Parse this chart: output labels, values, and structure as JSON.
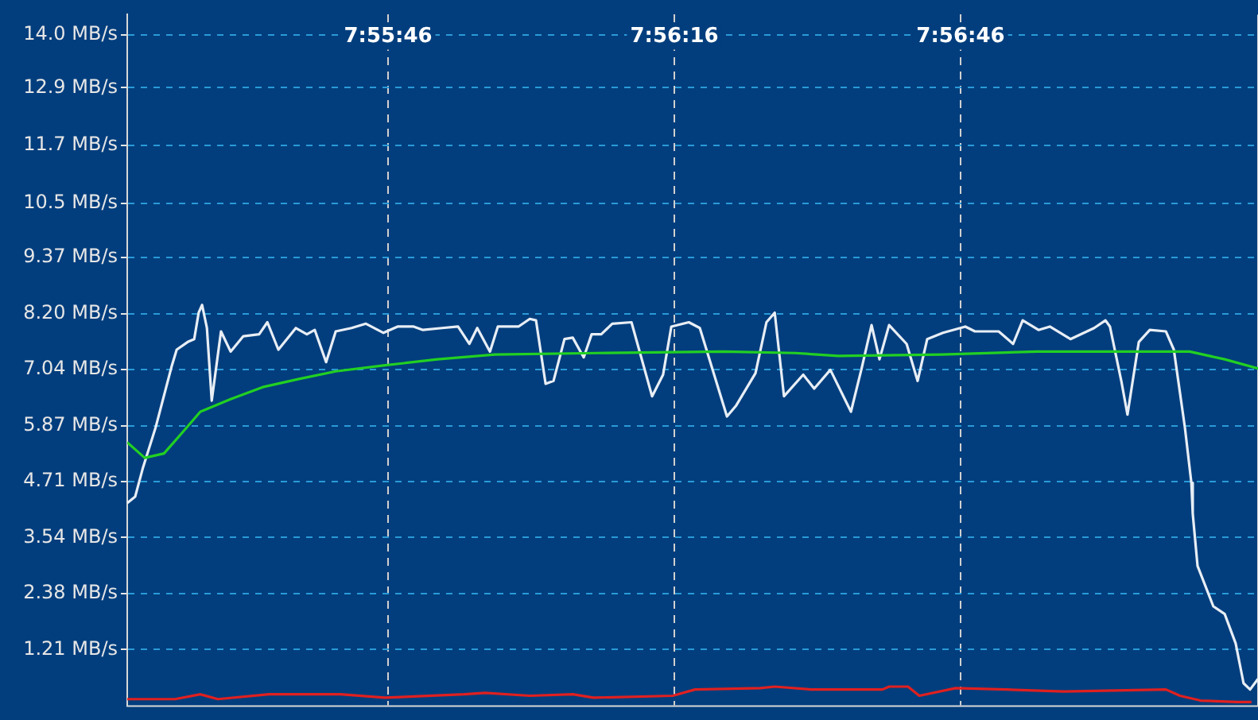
{
  "chart_data": {
    "type": "line",
    "xlim": [
      7.92185,
      7.95477
    ],
    "ylim": [
      0.05,
      14.42
    ],
    "xticks": [
      {
        "value": 7.929444,
        "label": "7:55:46"
      },
      {
        "value": 7.937778,
        "label": "7:56:16"
      },
      {
        "value": 7.946111,
        "label": "7:56:46"
      }
    ],
    "yticks": [
      {
        "value": 1.21,
        "label": "1.21 MB/s"
      },
      {
        "value": 2.38,
        "label": "2.38 MB/s"
      },
      {
        "value": 3.54,
        "label": "3.54 MB/s"
      },
      {
        "value": 4.71,
        "label": "4.71 MB/s"
      },
      {
        "value": 5.87,
        "label": "5.87 MB/s"
      },
      {
        "value": 7.04,
        "label": "7.04 MB/s"
      },
      {
        "value": 8.2,
        "label": "8.20 MB/s"
      },
      {
        "value": 9.37,
        "label": "9.37 MB/s"
      },
      {
        "value": 10.5,
        "label": "10.5 MB/s"
      },
      {
        "value": 11.7,
        "label": "11.7 MB/s"
      },
      {
        "value": 12.9,
        "label": "12.9 MB/s"
      },
      {
        "value": 14.0,
        "label": "14.0 MB/s"
      }
    ],
    "grid": true,
    "legend": false,
    "marker": "none",
    "line_style": "solid",
    "series": [
      {
        "color": "#e02020",
        "x": [
          7.92185,
          7.92324,
          7.92398,
          7.92449,
          7.92597,
          7.92806,
          7.92935,
          7.93167,
          7.93227,
          7.93357,
          7.93482,
          7.93542,
          7.93773,
          7.93838,
          7.94028,
          7.9407,
          7.94176,
          7.94384,
          7.94403,
          7.94458,
          7.94491,
          7.94597,
          7.94745,
          7.94912,
          7.95209,
          7.9525,
          7.9531,
          7.95417,
          7.95458
        ],
        "values": [
          0.18,
          0.18,
          0.28,
          0.18,
          0.28,
          0.28,
          0.21,
          0.28,
          0.31,
          0.25,
          0.28,
          0.21,
          0.25,
          0.38,
          0.41,
          0.44,
          0.38,
          0.38,
          0.44,
          0.44,
          0.25,
          0.41,
          0.38,
          0.34,
          0.38,
          0.25,
          0.15,
          0.12,
          0.12
        ]
      },
      {
        "color": "#e8eef5",
        "x": [
          7.92185,
          7.92208,
          7.92231,
          7.92268,
          7.92315,
          7.92329,
          7.92361,
          7.9238,
          7.92393,
          7.92403,
          7.92417,
          7.92431,
          7.92458,
          7.92486,
          7.92523,
          7.92569,
          7.92593,
          7.92625,
          7.92676,
          7.92708,
          7.92731,
          7.92764,
          7.92792,
          7.92838,
          7.9288,
          7.92931,
          7.92972,
          7.93019,
          7.93046,
          7.93102,
          7.93148,
          7.93181,
          7.93204,
          7.93241,
          7.93264,
          7.93324,
          7.93357,
          7.93375,
          7.93403,
          7.93426,
          7.93458,
          7.93482,
          7.93514,
          7.93537,
          7.93565,
          7.93597,
          7.93653,
          7.93713,
          7.93745,
          7.93769,
          7.9382,
          7.93852,
          7.93931,
          7.93958,
          7.94014,
          7.94046,
          7.9407,
          7.94097,
          7.94153,
          7.94185,
          7.94232,
          7.94292,
          7.94324,
          7.94352,
          7.94375,
          7.94403,
          7.94454,
          7.94486,
          7.94514,
          7.9456,
          7.94625,
          7.94653,
          7.94722,
          7.94764,
          7.94792,
          7.94838,
          7.94871,
          7.94931,
          7.95,
          7.95033,
          7.95046,
          7.95079,
          7.95097,
          7.9513,
          7.95162,
          7.95209,
          7.95232,
          7.95264,
          7.95283,
          7.95287,
          7.95301,
          7.95347,
          7.9538,
          7.95412,
          7.95435,
          7.95454,
          7.95477
        ],
        "values": [
          4.26,
          4.39,
          5.0,
          5.84,
          7.12,
          7.45,
          7.61,
          7.67,
          8.22,
          8.38,
          7.9,
          6.39,
          7.83,
          7.41,
          7.73,
          7.77,
          8.02,
          7.45,
          7.9,
          7.77,
          7.86,
          7.19,
          7.83,
          7.9,
          7.99,
          7.8,
          7.93,
          7.93,
          7.86,
          7.9,
          7.93,
          7.57,
          7.9,
          7.41,
          7.93,
          7.93,
          8.09,
          8.06,
          6.74,
          6.8,
          7.67,
          7.7,
          7.29,
          7.77,
          7.77,
          7.99,
          8.02,
          6.48,
          6.93,
          7.93,
          8.02,
          7.9,
          6.06,
          6.29,
          6.96,
          8.02,
          8.22,
          6.48,
          6.93,
          6.64,
          7.03,
          6.16,
          7.09,
          7.96,
          7.25,
          7.96,
          7.57,
          6.8,
          7.67,
          7.8,
          7.93,
          7.83,
          7.83,
          7.57,
          8.06,
          7.86,
          7.93,
          7.67,
          7.9,
          8.06,
          7.93,
          6.8,
          6.1,
          7.61,
          7.86,
          7.83,
          7.45,
          5.84,
          4.68,
          4.04,
          2.95,
          2.11,
          1.95,
          1.34,
          0.51,
          0.38,
          0.6
        ]
      },
      {
        "color": "#22d022",
        "x": [
          7.92185,
          7.92236,
          7.92292,
          7.92347,
          7.92398,
          7.92486,
          7.92579,
          7.92685,
          7.92792,
          7.92931,
          7.93088,
          7.93255,
          7.93551,
          7.93921,
          7.9413,
          7.94255,
          7.94556,
          7.94833,
          7.95278,
          7.9538,
          7.95477
        ],
        "values": [
          5.52,
          5.2,
          5.29,
          5.74,
          6.16,
          6.42,
          6.67,
          6.84,
          7.0,
          7.12,
          7.25,
          7.35,
          7.38,
          7.41,
          7.38,
          7.32,
          7.35,
          7.41,
          7.41,
          7.25,
          7.06
        ]
      }
    ]
  }
}
